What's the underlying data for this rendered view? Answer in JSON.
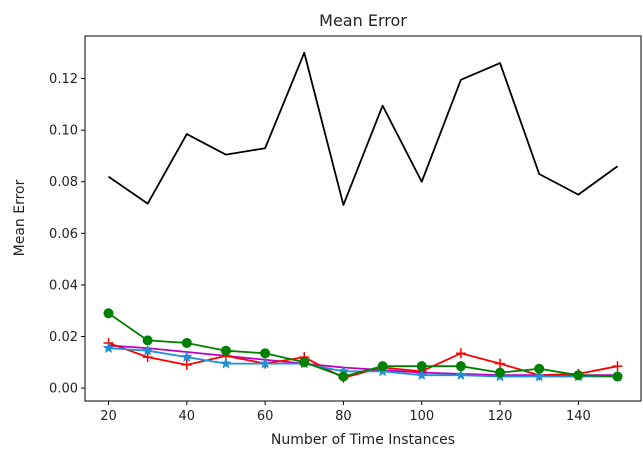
{
  "chart_data": {
    "type": "line",
    "title": "Mean Error",
    "xlabel": "Number of Time Instances",
    "ylabel": "Mean Error",
    "xlim": [
      14,
      156
    ],
    "ylim": [
      -0.005,
      0.1365
    ],
    "x_ticks": [
      20,
      40,
      60,
      80,
      100,
      120,
      140
    ],
    "y_ticks": [
      0.0,
      0.02,
      0.04,
      0.06,
      0.08,
      0.1,
      0.12
    ],
    "grid": false,
    "x": [
      20,
      30,
      40,
      50,
      60,
      70,
      80,
      90,
      100,
      110,
      120,
      130,
      140,
      150
    ],
    "series": [
      {
        "color": "#000000",
        "marker": "none",
        "values": [
          0.082,
          0.0715,
          0.0985,
          0.0905,
          0.093,
          0.13,
          0.071,
          0.1095,
          0.08,
          0.1195,
          0.126,
          0.083,
          0.075,
          0.086
        ]
      },
      {
        "color": "#bf00bf",
        "marker": "none",
        "values": [
          0.0165,
          0.0155,
          0.014,
          0.0125,
          0.011,
          0.0095,
          0.008,
          0.007,
          0.006,
          0.0055,
          0.005,
          0.005,
          0.005,
          0.005
        ]
      },
      {
        "color": "#ff0000",
        "marker": "plus",
        "values": [
          0.0175,
          0.012,
          0.009,
          0.0125,
          0.0095,
          0.012,
          0.004,
          0.008,
          0.0065,
          0.0135,
          0.0095,
          0.005,
          0.0055,
          0.0085
        ]
      },
      {
        "color": "#1f8fd6",
        "marker": "star",
        "values": [
          0.0155,
          0.0145,
          0.012,
          0.0095,
          0.0095,
          0.0095,
          0.0065,
          0.0065,
          0.005,
          0.005,
          0.0045,
          0.0045,
          0.0045,
          0.0045
        ]
      },
      {
        "color": "#008000",
        "marker": "circle",
        "values": [
          0.029,
          0.0185,
          0.0175,
          0.0145,
          0.0135,
          0.01,
          0.0045,
          0.0085,
          0.0085,
          0.0085,
          0.006,
          0.0075,
          0.005,
          0.0045
        ]
      }
    ]
  }
}
